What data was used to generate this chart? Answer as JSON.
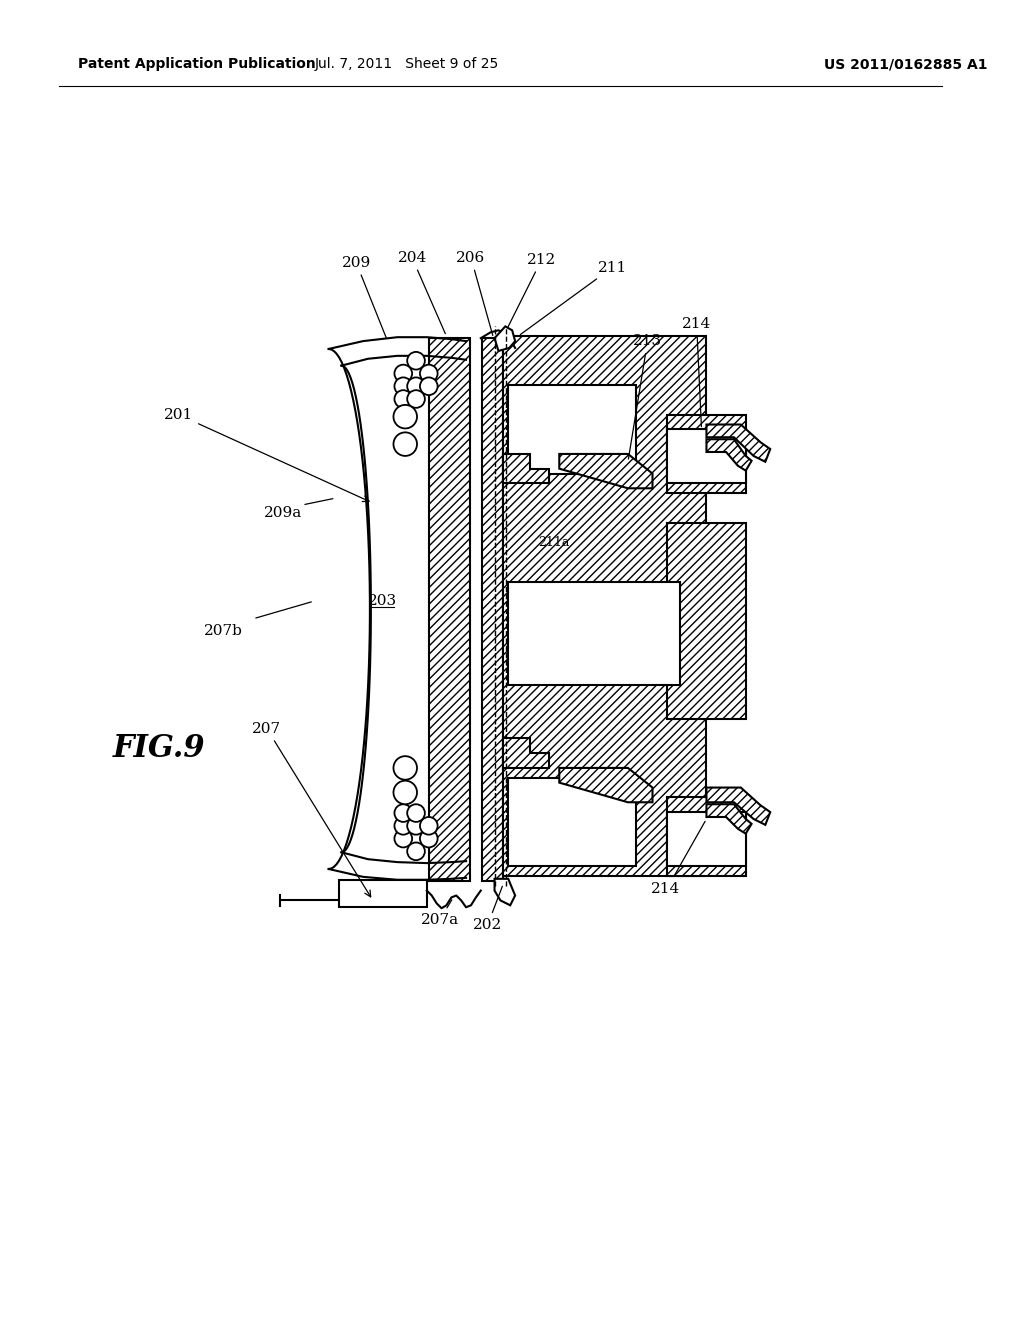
{
  "bg_color": "#ffffff",
  "header_left": "Patent Application Publication",
  "header_mid": "Jul. 7, 2011   Sheet 9 of 25",
  "header_right": "US 2011/0162885 A1",
  "fig_label": "FIG.9",
  "lw": 1.5,
  "lc": "#000000",
  "label_fs": 11,
  "fig_label_fs": 22,
  "header_fs": 10
}
